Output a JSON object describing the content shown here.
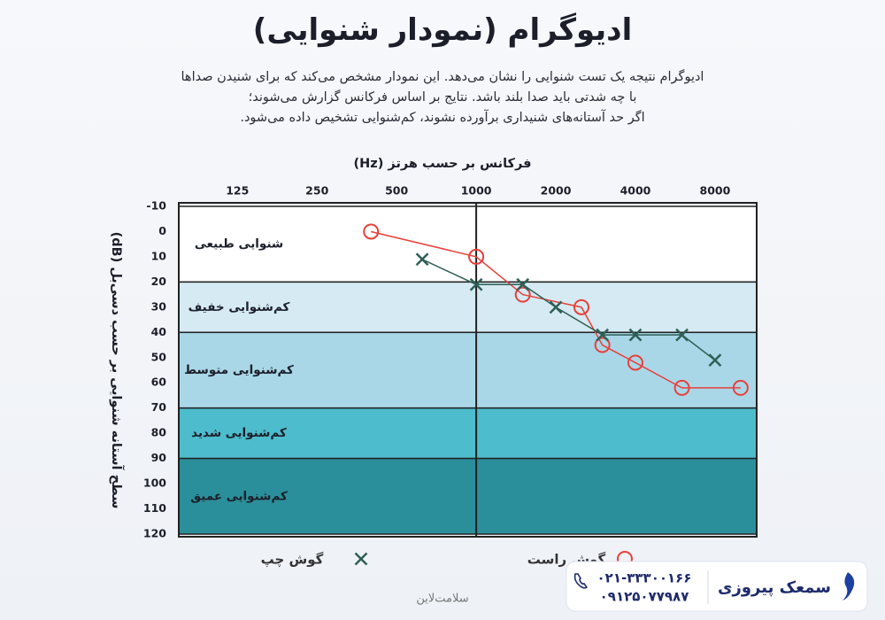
{
  "chart_data": {
    "type": "line",
    "title": "ادیوگرام (نمودار شنوایی)",
    "description": [
      "ادیوگرام نتیجه یک تست شنوایی را نشان می‌دهد. این نمودار مشخص می‌کند که برای شنیدن صداها",
      "با چه شدتی باید صدا بلند باشد. نتایج بر اساس فرکانس گزارش می‌شوند؛",
      "اگر حد آستانه‌های شنیداری برآورده نشوند، کم‌شنوایی تشخیص داده می‌شود."
    ],
    "xlabel": "فرکانس بر حسب هرتز (Hz)",
    "ylabel": "سطح آستانه شنوایی بر حسب دسی‌بل (dB)",
    "xscale": "log",
    "xlim": [
      75,
      11500
    ],
    "xticks": [
      125,
      250,
      500,
      1000,
      2000,
      4000,
      8000
    ],
    "ylim": [
      -10,
      120
    ],
    "yticks": [
      -10,
      0,
      10,
      20,
      30,
      40,
      50,
      60,
      70,
      80,
      90,
      100,
      110,
      120
    ],
    "y_inverted": true,
    "x_reference_line": 1000,
    "bands": [
      {
        "label": "شنوایی طبیعی",
        "from": -10,
        "to": 20,
        "color": "#ffffff"
      },
      {
        "label": "کم‌شنوایی خفیف",
        "from": 20,
        "to": 40,
        "color": "#d5eaf3"
      },
      {
        "label": "کم‌شنوایی متوسط",
        "from": 40,
        "to": 70,
        "color": "#a9d7e7"
      },
      {
        "label": "کم‌شنوایی شدید",
        "from": 70,
        "to": 90,
        "color": "#4dbccc"
      },
      {
        "label": "کم‌شنوایی عمیق",
        "from": 90,
        "to": 120,
        "color": "#2a8f9a"
      }
    ],
    "series": [
      {
        "name": "گوش راست",
        "color": "#e8403a",
        "marker": "circle",
        "x": [
          400,
          1000,
          1500,
          2500,
          3000,
          4000,
          6000,
          10000
        ],
        "values": [
          0,
          10,
          25,
          30,
          45,
          52,
          62,
          62
        ]
      },
      {
        "name": "گوش چپ",
        "color": "#2f5f55",
        "marker": "cross",
        "x": [
          625,
          1000,
          1500,
          2000,
          3000,
          4000,
          6000,
          8000
        ],
        "values": [
          11,
          21,
          21,
          30,
          41,
          41,
          41,
          51
        ]
      }
    ],
    "legend": "bottom"
  },
  "footer": {
    "site": "سلامت‌لاین",
    "brand": "سمعک پیروزی",
    "phones": [
      "۰۲۱-۳۳۳۰۰۱۶۶",
      "۰۹۱۲۵۰۷۷۹۸۷"
    ]
  }
}
